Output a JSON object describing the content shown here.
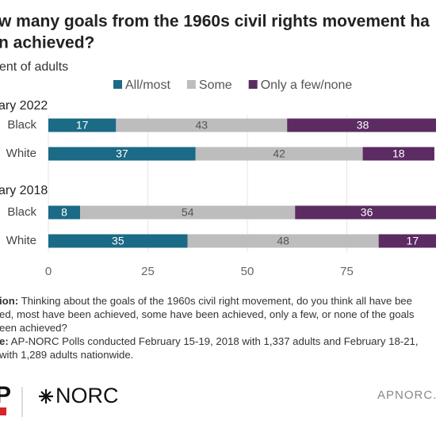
{
  "chart_data": {
    "type": "stacked-bar",
    "title_lines": [
      "w many goals from the 1960s civil rights movement ha",
      "n achieved?"
    ],
    "subtitle": "ent of adults",
    "groups": [
      "ary 2022",
      "ary 2018"
    ],
    "categories": [
      "Black",
      "White",
      "Black",
      "White"
    ],
    "series": [
      {
        "name": "All/most",
        "color": "#1b6a86",
        "label_color": "#ffffff",
        "values": [
          17,
          37,
          8,
          35
        ]
      },
      {
        "name": "Some",
        "color": "#bdbdbd",
        "label_color": "#555555",
        "values": [
          43,
          42,
          54,
          48
        ]
      },
      {
        "name": "Only a few/none",
        "color": "#5b2b62",
        "label_color": "#ffffff",
        "values": [
          38,
          18,
          36,
          17
        ]
      }
    ],
    "xlim": [
      0,
      100
    ],
    "xticks": [
      0,
      25,
      50,
      75
    ],
    "grid": true,
    "notes": [
      {
        "bold": "ion:",
        "text": "Thinking about the goals of the 1960s civil right movement, do you think all have bee"
      },
      {
        "bold": "",
        "text": "ed, most have been achieved, some have been achieved, only a few, or none of the goals"
      },
      {
        "bold": "",
        "text": "een achieved?"
      },
      {
        "bold": "e:",
        "text": "AP-NORC Polls conducted February 15-19, 2018 with 1,337 adults and February 18-21,"
      },
      {
        "bold": "",
        "text": "with 1,289 adults nationwide."
      }
    ],
    "footer": {
      "logo_left": "P",
      "logo_right": "NORC",
      "url": "APNORC.o"
    }
  }
}
